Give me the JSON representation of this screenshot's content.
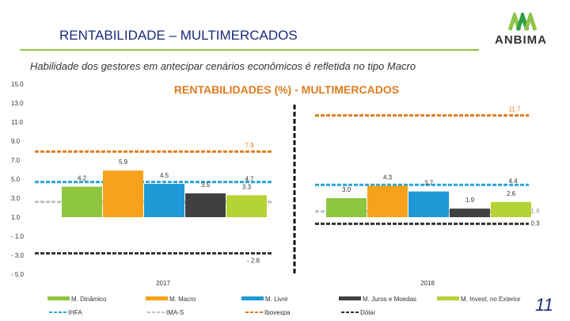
{
  "header": {
    "title": "RENTABILIDADE – MULTIMERCADOS",
    "brand": "ANBIMA",
    "subtitle": "Habilidade dos gestores em antecipar cenários econômicos é refletida no tipo Macro",
    "page_number": "11"
  },
  "colors": {
    "title": "#1b2a7a",
    "rule": "#8fc34a",
    "chart_title": "#e07b1f",
    "M. Dinâmico": "#8dc63f",
    "M. Macro": "#f7a21b",
    "M. Livre": "#1f9ad6",
    "M. Juros e Moedas": "#404040",
    "M. Invest. no Exterior": "#b5d334",
    "IHFA": "#2aa5d8",
    "IMA-S": "#c0c0c0",
    "Ibovespa": "#e07b1f",
    "Dólar": "#333333"
  },
  "chart_data": {
    "type": "bar",
    "title": "RENTABILIDADES (%) - MULTIMERCADOS",
    "categories": [
      "2017",
      "2018"
    ],
    "ylim": [
      -5.0,
      15.0
    ],
    "yticks": [
      "15.0",
      "13.0",
      "11.0",
      "9.0",
      "7.0",
      "5.0",
      "3.0",
      "1.0",
      "- 1.0",
      "- 3.0",
      "- 5.0"
    ],
    "ytick_values": [
      15,
      13,
      11,
      9,
      7,
      5,
      3,
      1,
      -1,
      -3,
      -5
    ],
    "series": [
      {
        "name": "M. Dinâmico",
        "values": [
          4.2,
          3.0
        ],
        "labels": [
          "4.2",
          "3.0"
        ]
      },
      {
        "name": "M. Macro",
        "values": [
          5.9,
          4.3
        ],
        "labels": [
          "5.9",
          "4.3"
        ]
      },
      {
        "name": "M. Livre",
        "values": [
          4.5,
          3.7
        ],
        "labels": [
          "4.5",
          "3.7"
        ]
      },
      {
        "name": "M. Juros e Moedas",
        "values": [
          3.5,
          1.9
        ],
        "labels": [
          "3.5",
          "1.9"
        ]
      },
      {
        "name": "M. Invest. no Exterior",
        "values": [
          3.3,
          2.6
        ],
        "labels": [
          "3.3",
          "2.6"
        ]
      }
    ],
    "reference_lines": [
      {
        "name": "IHFA",
        "values": [
          4.7,
          4.4
        ],
        "labels": [
          "4.7",
          "4.4"
        ],
        "style": "dashed"
      },
      {
        "name": "IMA-S",
        "values": [
          2.6,
          1.6
        ],
        "labels": [
          "",
          "1.6"
        ],
        "style": "dashed"
      },
      {
        "name": "Ibovespa",
        "values": [
          7.9,
          11.7
        ],
        "labels": [
          "7.9",
          "11.7"
        ],
        "style": "dashed"
      },
      {
        "name": "Dólar",
        "values": [
          -2.8,
          0.3
        ],
        "labels": [
          "- 2.8",
          "0.3"
        ],
        "style": "dashed"
      }
    ],
    "legend": [
      "M. Dinâmico",
      "M. Macro",
      "M. Livre",
      "M. Juros e Moedas",
      "M. Invest. no Exterior",
      "IHFA",
      "IMA-S",
      "Ibovespa",
      "Dólar"
    ]
  }
}
